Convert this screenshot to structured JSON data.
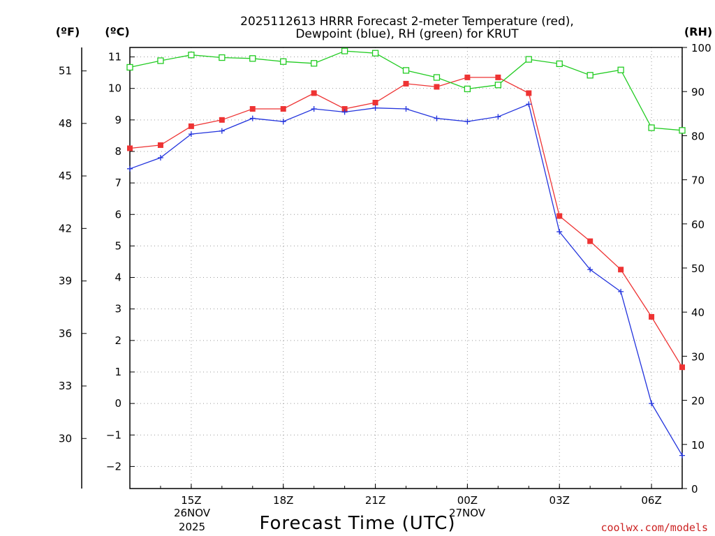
{
  "colors": {
    "temperature": "#ee3333",
    "dewpoint": "#2233dd",
    "rh": "#22cc22",
    "credit": "#cc2222"
  },
  "units": {
    "fahrenheit": "(ºF)",
    "celsius": "(ºC)",
    "rh": "(RH)"
  },
  "x_date_labels": {
    "start": [
      "26NOV",
      "2025"
    ],
    "day2": [
      "27NOV"
    ]
  },
  "credit": "coolwx.com/models",
  "chart_data": {
    "type": "line",
    "title": [
      "2025112613 HRRR Forecast 2-meter Temperature (red),",
      "Dewpoint (blue), RH (green) for KRUT"
    ],
    "xlabel": "Forecast Time (UTC)",
    "x": [
      13,
      14,
      15,
      16,
      17,
      18,
      19,
      20,
      21,
      22,
      23,
      24,
      25,
      26,
      27,
      28,
      29,
      30,
      31
    ],
    "xlim": [
      13,
      31
    ],
    "x_ticks": [
      {
        "x": 15,
        "label": "15Z"
      },
      {
        "x": 18,
        "label": "18Z"
      },
      {
        "x": 21,
        "label": "21Z"
      },
      {
        "x": 24,
        "label": "00Z"
      },
      {
        "x": 27,
        "label": "03Z"
      },
      {
        "x": 30,
        "label": "06Z"
      }
    ],
    "celsius_axis": {
      "ylim": [
        -2.7,
        11.3
      ],
      "ticks": [
        -2,
        -1,
        0,
        1,
        2,
        3,
        4,
        5,
        6,
        7,
        8,
        9,
        10,
        11
      ]
    },
    "fahrenheit_axis": {
      "ticks": [
        30,
        33,
        36,
        39,
        42,
        45,
        48,
        51
      ]
    },
    "rh_axis": {
      "ylim": [
        0,
        100
      ],
      "ticks": [
        0,
        10,
        20,
        30,
        40,
        50,
        60,
        70,
        80,
        90,
        100
      ]
    },
    "series": [
      {
        "name": "Temperature",
        "axis": "celsius",
        "marker": "square",
        "values": [
          8.1,
          8.2,
          8.8,
          9.0,
          9.35,
          9.35,
          9.85,
          9.35,
          9.55,
          10.15,
          10.05,
          10.35,
          10.35,
          9.85,
          5.95,
          5.15,
          4.25,
          2.75,
          1.15
        ]
      },
      {
        "name": "Dewpoint",
        "axis": "celsius",
        "marker": "plus",
        "values": [
          7.45,
          7.8,
          8.55,
          8.65,
          9.05,
          8.95,
          9.35,
          9.25,
          9.38,
          9.35,
          9.05,
          8.95,
          9.1,
          9.5,
          5.45,
          4.25,
          3.55,
          0.0,
          -1.65
        ]
      },
      {
        "name": "RH",
        "axis": "rh",
        "marker": "open-square",
        "values": [
          95.5,
          97.0,
          98.3,
          97.7,
          97.5,
          96.8,
          96.4,
          99.2,
          98.7,
          94.8,
          93.2,
          90.6,
          91.5,
          97.3,
          96.3,
          93.7,
          94.9,
          81.8,
          81.2
        ]
      }
    ]
  }
}
